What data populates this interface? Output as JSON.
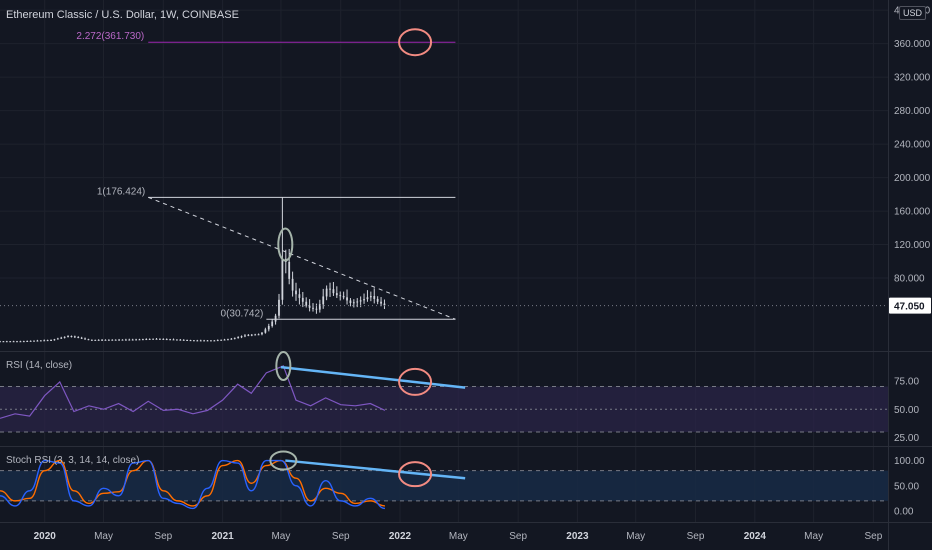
{
  "header": {
    "title": "Ethereum Classic / U.S. Dollar, 1W, COINBASE"
  },
  "currency_badge": "USD",
  "panes": {
    "rsi_title": "RSI (14, close)",
    "stoch_title": "Stoch RSI (3, 3, 14, 14, close)"
  },
  "colors": {
    "background": "#131722",
    "grid": "#1e222d",
    "text": "#b2b5be",
    "candle": "#d1d4dc",
    "fib": "#d1d4dc",
    "fib_ext": "#9c27b0",
    "rsi_line": "#7e57c2",
    "rsi_band": "#2a2447",
    "stoch_k": "#2962ff",
    "stoch_d": "#ff6d00",
    "stoch_band": "#172a45",
    "trend_blue": "#64b5f6",
    "circle_red": "#f28b82",
    "circle_gray": "#a5b4aa",
    "price_tag": "#ffffff"
  },
  "chart_data": [
    {
      "type": "candlestick",
      "title": "Ethereum Classic / U.S. Dollar, 1W, COINBASE",
      "x_axis": {
        "ticks": [
          "2020",
          "May",
          "Sep",
          "2021",
          "May",
          "Sep",
          "2022",
          "May",
          "Sep",
          "2023",
          "May",
          "Sep",
          "2024",
          "May",
          "Sep"
        ]
      },
      "y_axis": {
        "ticks": [
          80,
          120,
          160,
          200,
          240,
          280,
          320,
          360,
          400
        ],
        "tick_labels": [
          "80.000",
          "120.000",
          "160.000",
          "200.000",
          "240.000",
          "280.000",
          "320.000",
          "360.000",
          "400.000"
        ],
        "range": [
          0,
          405
        ]
      },
      "last_price": 47.05,
      "last_price_label": "47.050",
      "close_series": {
        "x": [
          "2019-10-01",
          "2019-11-15",
          "2020-01-15",
          "2020-02-20",
          "2020-04-01",
          "2020-07-01",
          "2020-08-15",
          "2020-11-01",
          "2020-12-15",
          "2021-01-15",
          "2021-02-20",
          "2021-03-20",
          "2021-04-10",
          "2021-04-25",
          "2021-05-06",
          "2021-05-15",
          "2021-05-25",
          "2021-06-10",
          "2021-06-25",
          "2021-07-15",
          "2021-08-05",
          "2021-08-20",
          "2021-09-05",
          "2021-09-20",
          "2021-10-05",
          "2021-10-20",
          "2021-11-01",
          "2021-11-15",
          "2021-12-01"
        ],
        "values": [
          4.5,
          4.5,
          6,
          11,
          6,
          6.5,
          7.5,
          5.5,
          5.5,
          7,
          12,
          13,
          25,
          40,
          117,
          85,
          65,
          55,
          45,
          42,
          70,
          60,
          58,
          50,
          52,
          55,
          59,
          52,
          47
        ]
      },
      "fib_levels": [
        {
          "label": "1(176.424)",
          "value": 176.424
        },
        {
          "label": "0(30.742)",
          "value": 30.742
        },
        {
          "label": "2.272(361.730)",
          "value": 361.73
        }
      ],
      "annotations": [
        {
          "kind": "dashed-trendline",
          "from": [
            "2020-08-01",
            176.424
          ],
          "to": [
            "2022-04-25",
            30.742
          ]
        },
        {
          "kind": "circle",
          "color": "red",
          "at": [
            "2022-02-01",
            361.73
          ]
        },
        {
          "kind": "circle",
          "color": "gray",
          "at": [
            "2021-05-10",
            120
          ]
        }
      ]
    },
    {
      "type": "line",
      "title": "RSI (14, close)",
      "y_axis": {
        "ticks": [
          25,
          50,
          75
        ],
        "tick_labels": [
          "25.00",
          "50.00",
          "75.00"
        ],
        "range": [
          23,
          95
        ]
      },
      "bands": [
        30,
        50,
        70
      ],
      "series": [
        {
          "x": [
            "2019-10-01",
            "2019-11-01",
            "2019-12-01",
            "2020-01-01",
            "2020-02-01",
            "2020-03-01",
            "2020-04-01",
            "2020-05-01",
            "2020-06-01",
            "2020-07-01",
            "2020-08-01",
            "2020-09-01",
            "2020-10-01",
            "2020-11-01",
            "2020-12-01",
            "2021-01-01",
            "2021-02-01",
            "2021-03-01",
            "2021-04-01",
            "2021-05-06",
            "2021-06-01",
            "2021-07-01",
            "2021-08-01",
            "2021-09-01",
            "2021-10-01",
            "2021-11-01",
            "2021-12-01"
          ],
          "values": [
            42,
            46,
            44,
            62,
            74,
            48,
            53,
            50,
            55,
            48,
            57,
            49,
            50,
            46,
            49,
            58,
            72,
            64,
            82,
            88,
            58,
            53,
            60,
            54,
            53,
            55,
            49
          ]
        }
      ],
      "annotations": [
        {
          "kind": "trendline",
          "color": "blue",
          "from": [
            "2021-05-01",
            87
          ],
          "to": [
            "2022-05-15",
            69
          ]
        },
        {
          "kind": "circle",
          "color": "gray",
          "at": [
            "2021-05-06",
            88
          ]
        },
        {
          "kind": "circle",
          "color": "red",
          "at": [
            "2022-02-01",
            74
          ]
        }
      ]
    },
    {
      "type": "line",
      "title": "Stoch RSI (3, 3, 14, 14, close)",
      "y_axis": {
        "ticks": [
          0,
          50,
          100
        ],
        "tick_labels": [
          "0.00",
          "50.00",
          "100.00"
        ],
        "range": [
          -10,
          115
        ]
      },
      "bands": [
        20,
        80
      ],
      "series": [
        {
          "x": [
            "2019-10-01",
            "2019-11-01",
            "2019-12-01",
            "2020-01-01",
            "2020-02-01",
            "2020-03-01",
            "2020-04-01",
            "2020-05-01",
            "2020-06-01",
            "2020-07-01",
            "2020-08-01",
            "2020-09-01",
            "2020-10-01",
            "2020-11-01",
            "2020-12-01",
            "2021-01-01",
            "2021-02-01",
            "2021-03-01",
            "2021-04-01",
            "2021-05-01",
            "2021-06-01",
            "2021-07-01",
            "2021-08-01",
            "2021-09-01",
            "2021-10-01",
            "2021-11-01",
            "2021-12-01"
          ],
          "values": [
            30,
            10,
            40,
            100,
            95,
            20,
            10,
            45,
            30,
            95,
            100,
            25,
            15,
            5,
            45,
            100,
            95,
            40,
            100,
            100,
            50,
            10,
            60,
            20,
            10,
            25,
            5
          ]
        },
        {
          "x": [
            "2019-10-01",
            "2019-11-01",
            "2019-12-01",
            "2020-01-01",
            "2020-02-01",
            "2020-03-01",
            "2020-04-01",
            "2020-05-01",
            "2020-06-01",
            "2020-07-01",
            "2020-08-01",
            "2020-09-01",
            "2020-10-01",
            "2020-11-01",
            "2020-12-01",
            "2021-01-01",
            "2021-02-01",
            "2021-03-01",
            "2021-04-01",
            "2021-05-01",
            "2021-06-01",
            "2021-07-01",
            "2021-08-01",
            "2021-09-01",
            "2021-10-01",
            "2021-11-01",
            "2021-12-01"
          ],
          "values": [
            40,
            20,
            25,
            80,
            100,
            40,
            15,
            35,
            38,
            80,
            100,
            40,
            20,
            10,
            30,
            90,
            100,
            55,
            90,
            100,
            65,
            20,
            45,
            35,
            15,
            20,
            10
          ]
        }
      ],
      "annotations": [
        {
          "kind": "trendline",
          "color": "blue",
          "from": [
            "2021-05-10",
            100
          ],
          "to": [
            "2022-05-15",
            65
          ]
        },
        {
          "kind": "circle",
          "color": "gray",
          "at": [
            "2021-05-06",
            100
          ]
        },
        {
          "kind": "circle",
          "color": "red",
          "at": [
            "2022-02-01",
            73
          ]
        }
      ]
    }
  ]
}
